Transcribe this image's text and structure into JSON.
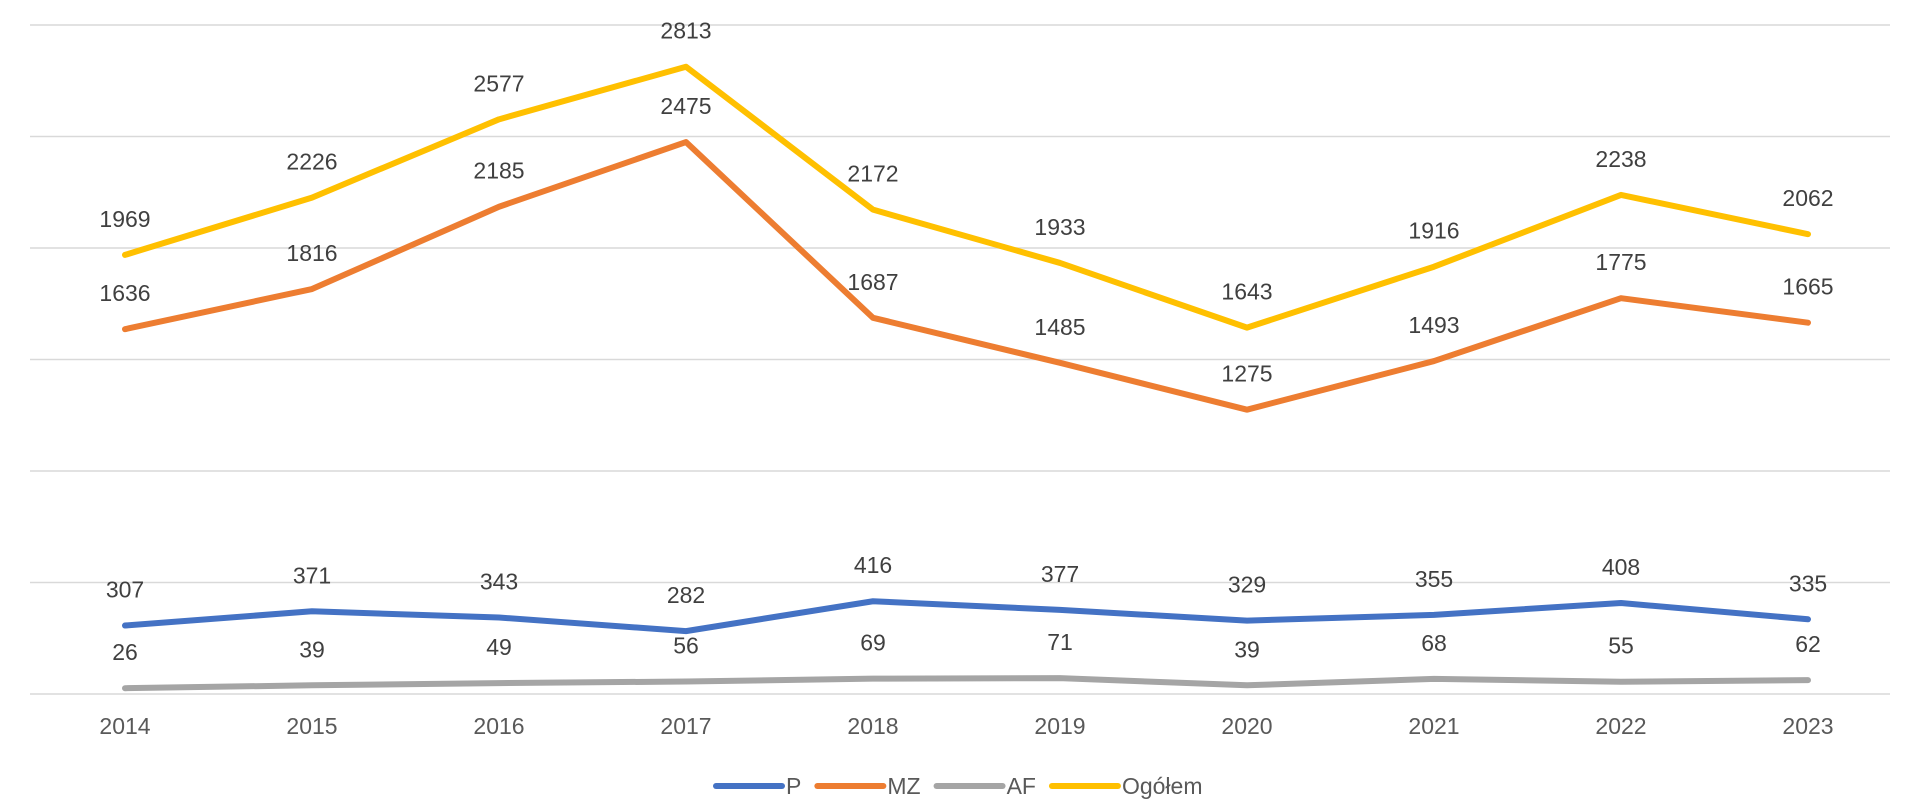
{
  "chart_data": {
    "type": "line",
    "title": "",
    "xlabel": "",
    "ylabel": "",
    "categories": [
      "2014",
      "2015",
      "2016",
      "2017",
      "2018",
      "2019",
      "2020",
      "2021",
      "2022",
      "2023"
    ],
    "ylim": [
      0,
      3000
    ],
    "grid": true,
    "legend_position": "bottom",
    "series": [
      {
        "name": "P",
        "color": "#4472C4",
        "values": [
          307,
          371,
          343,
          282,
          416,
          377,
          329,
          355,
          408,
          335
        ]
      },
      {
        "name": "MZ",
        "color": "#ED7D31",
        "values": [
          1636,
          1816,
          2185,
          2475,
          1687,
          1485,
          1275,
          1493,
          1775,
          1665
        ]
      },
      {
        "name": "AF",
        "color": "#A5A5A5",
        "values": [
          26,
          39,
          49,
          56,
          69,
          71,
          39,
          68,
          55,
          62
        ]
      },
      {
        "name": "Ogółem",
        "color": "#FFC000",
        "values": [
          1969,
          2226,
          2577,
          2813,
          2172,
          1933,
          1643,
          1916,
          2238,
          2062
        ]
      }
    ]
  }
}
